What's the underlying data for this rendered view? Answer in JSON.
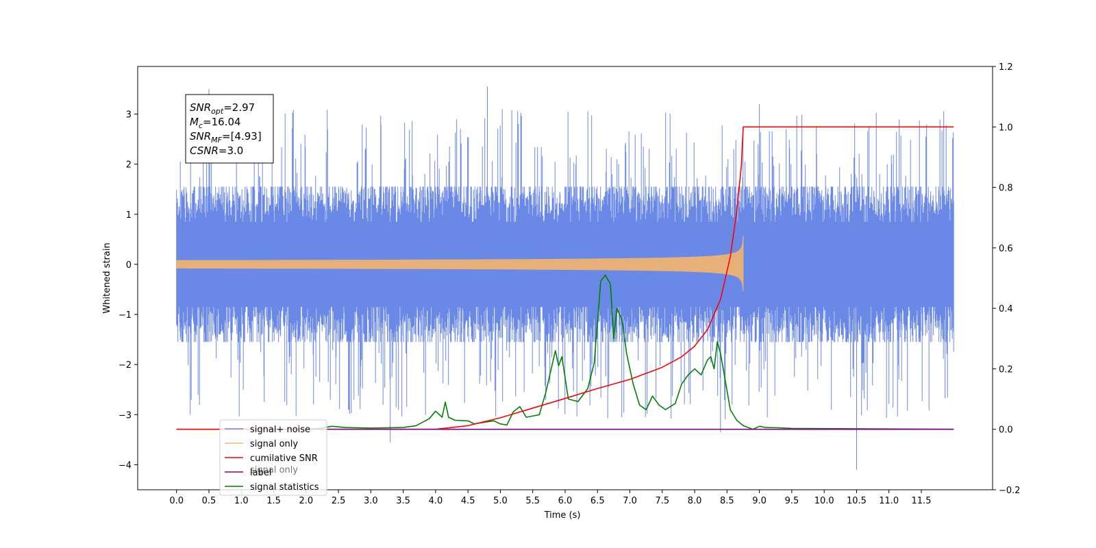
{
  "chart_data": {
    "type": "line",
    "title": "",
    "xlabel": "Time (s)",
    "ylabel": "Whitened strain",
    "xlim": [
      -0.6,
      12.6
    ],
    "ylim": [
      -4.5,
      3.95
    ],
    "y2lim": [
      -0.2,
      1.2
    ],
    "x_ticks": [
      0.0,
      0.5,
      1.0,
      1.5,
      2.0,
      2.5,
      3.0,
      3.5,
      4.0,
      4.5,
      5.0,
      5.5,
      6.0,
      6.5,
      7.0,
      7.5,
      8.0,
      8.5,
      9.0,
      9.5,
      10.0,
      10.5,
      11.0,
      11.5
    ],
    "x_tick_labels": [
      "0.0",
      "0.5",
      "1.0",
      "1.5",
      "2.0",
      "2.5",
      "3.0",
      "3.5",
      "4.0",
      "4.5",
      "5.0",
      "5.5",
      "6.0",
      "6.5",
      "7.0",
      "7.5",
      "8.0",
      "8.5",
      "9.0",
      "9.5",
      "10.0",
      "10.5",
      "11.0",
      "11.5"
    ],
    "y_ticks": [
      -4,
      -3,
      -2,
      -1,
      0,
      1,
      2,
      3
    ],
    "y_tick_labels": [
      "−4",
      "−3",
      "−2",
      "−1",
      "0",
      "1",
      "2",
      "3"
    ],
    "y2_ticks": [
      -0.2,
      0.0,
      0.2,
      0.4,
      0.6,
      0.8,
      1.0,
      1.2
    ],
    "y2_tick_labels": [
      "−0.2",
      "0.0",
      "0.2",
      "0.4",
      "0.6",
      "0.8",
      "1.0",
      "1.2"
    ],
    "grid": false,
    "legend_position": "lower-left",
    "series": [
      {
        "name": "signal+ noise",
        "axis": "left",
        "color": "#6a88e6",
        "style": "noise",
        "x_range": [
          0.0,
          12.0
        ],
        "amplitude_typical": [
          -1.9,
          2.4
        ],
        "peaks": [
          [
            0.5,
            3.5
          ],
          [
            3.3,
            -3.55
          ],
          [
            4.8,
            3.55
          ],
          [
            10.5,
            -4.1
          ],
          [
            8.4,
            -3.35
          ],
          [
            9.0,
            3.2
          ]
        ]
      },
      {
        "name": "signal only",
        "axis": "left",
        "color": "#f5b56b",
        "style": "chirp",
        "x_range": [
          0.0,
          8.75
        ],
        "merger_time": 8.75,
        "peak_amplitude": 0.58
      },
      {
        "name": "cumilative SNR",
        "axis": "right",
        "color": "#ff0000",
        "style": "line",
        "x": [
          0.0,
          4.0,
          4.5,
          5.0,
          5.5,
          6.0,
          6.5,
          7.0,
          7.5,
          7.8,
          8.0,
          8.2,
          8.4,
          8.55,
          8.65,
          8.72,
          8.75,
          12.0
        ],
        "y": [
          0.0,
          0.0,
          0.012,
          0.038,
          0.07,
          0.102,
          0.135,
          0.165,
          0.205,
          0.24,
          0.275,
          0.33,
          0.43,
          0.57,
          0.72,
          0.87,
          1.0,
          1.0
        ]
      },
      {
        "name": "label",
        "axis": "right",
        "color": "#800080",
        "style": "line",
        "x": [
          2.0,
          12.0
        ],
        "y": [
          0.0,
          0.0
        ]
      },
      {
        "name": "signal statistics",
        "axis": "right",
        "color": "#008000",
        "style": "line",
        "x": [
          0.0,
          2.0,
          2.2,
          2.4,
          2.6,
          3.0,
          3.5,
          3.7,
          3.9,
          4.0,
          4.1,
          4.15,
          4.2,
          4.3,
          4.5,
          4.6,
          4.8,
          4.9,
          5.0,
          5.1,
          5.2,
          5.3,
          5.4,
          5.6,
          5.7,
          5.85,
          5.9,
          5.95,
          6.05,
          6.2,
          6.35,
          6.45,
          6.55,
          6.62,
          6.7,
          6.75,
          6.8,
          6.88,
          6.95,
          7.05,
          7.15,
          7.25,
          7.35,
          7.45,
          7.55,
          7.7,
          7.8,
          7.9,
          8.0,
          8.1,
          8.2,
          8.25,
          8.3,
          8.35,
          8.4,
          8.45,
          8.55,
          8.65,
          8.75,
          8.9,
          9.0,
          9.1,
          9.3,
          9.5,
          12.0
        ],
        "y": [
          0.0,
          0.0,
          0.003,
          0.01,
          0.006,
          0.004,
          0.006,
          0.012,
          0.035,
          0.06,
          0.04,
          0.09,
          0.04,
          0.03,
          0.028,
          0.018,
          0.025,
          0.028,
          0.018,
          0.014,
          0.058,
          0.075,
          0.04,
          0.048,
          0.12,
          0.26,
          0.21,
          0.24,
          0.1,
          0.092,
          0.135,
          0.22,
          0.49,
          0.51,
          0.48,
          0.3,
          0.4,
          0.36,
          0.25,
          0.15,
          0.08,
          0.065,
          0.11,
          0.08,
          0.065,
          0.085,
          0.15,
          0.18,
          0.2,
          0.18,
          0.23,
          0.24,
          0.2,
          0.29,
          0.25,
          0.19,
          0.065,
          0.03,
          0.012,
          0.0,
          0.01,
          0.006,
          0.005,
          0.003,
          0.0
        ]
      }
    ],
    "annotation": {
      "lines": [
        {
          "base": "SNR",
          "sub": "opt",
          "rest": "=2.97"
        },
        {
          "base": "M",
          "sub": "c",
          "rest": "=16.04"
        },
        {
          "base": "SNR",
          "sub": "MF",
          "rest": "=[4.93]"
        },
        {
          "base": "CSNR",
          "sub": "",
          "rest": "=3.0"
        }
      ]
    }
  }
}
